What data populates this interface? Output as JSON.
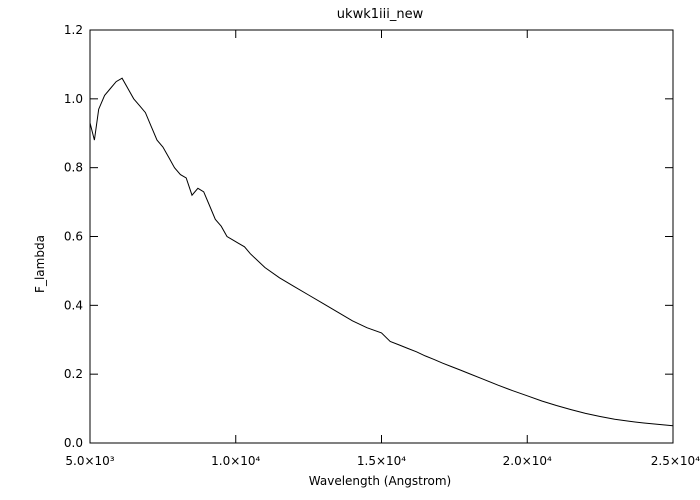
{
  "chart_data": {
    "type": "line",
    "title": "ukwk1iii_new",
    "xlabel": "Wavelength (Angstrom)",
    "ylabel": "F_lambda",
    "xlim": [
      5000,
      25000
    ],
    "ylim": [
      0.0,
      1.2
    ],
    "x_ticks": [
      5000,
      10000,
      15000,
      20000,
      25000
    ],
    "x_tick_labels": [
      "5.0×10³",
      "1.0×10⁴",
      "1.5×10⁴",
      "2.0×10⁴",
      "2.5×10⁴"
    ],
    "y_ticks": [
      0.0,
      0.2,
      0.4,
      0.6,
      0.8,
      1.0,
      1.2
    ],
    "y_tick_labels": [
      "0.0",
      "0.2",
      "0.4",
      "0.6",
      "0.8",
      "1.0",
      "1.2"
    ],
    "grid": false,
    "line_color": "#000000",
    "series": [
      {
        "x": [
          5000,
          5150,
          5300,
          5500,
          5700,
          5900,
          6100,
          6300,
          6500,
          6700,
          6900,
          7100,
          7300,
          7500,
          7700,
          7900,
          8100,
          8300,
          8500,
          8700,
          8900,
          9100,
          9300,
          9500,
          9700,
          9900,
          10100,
          10300,
          10500,
          11000,
          11500,
          12000,
          12500,
          13000,
          13500,
          14000,
          14500,
          15000,
          15300,
          15600,
          15900,
          16200,
          16500,
          16800,
          17100,
          17400,
          17700,
          18000,
          18500,
          19000,
          19500,
          20000,
          20500,
          21000,
          21500,
          22000,
          22500,
          23000,
          23500,
          24000,
          24500,
          25000
        ],
        "y": [
          0.93,
          0.88,
          0.97,
          1.01,
          1.03,
          1.05,
          1.06,
          1.03,
          1.0,
          0.98,
          0.96,
          0.92,
          0.88,
          0.86,
          0.83,
          0.8,
          0.78,
          0.77,
          0.72,
          0.74,
          0.73,
          0.69,
          0.65,
          0.63,
          0.6,
          0.59,
          0.58,
          0.57,
          0.55,
          0.51,
          0.48,
          0.455,
          0.43,
          0.405,
          0.38,
          0.355,
          0.335,
          0.32,
          0.295,
          0.285,
          0.275,
          0.265,
          0.253,
          0.243,
          0.232,
          0.222,
          0.212,
          0.202,
          0.185,
          0.168,
          0.152,
          0.137,
          0.122,
          0.109,
          0.097,
          0.086,
          0.077,
          0.069,
          0.063,
          0.058,
          0.054,
          0.05
        ]
      }
    ]
  }
}
